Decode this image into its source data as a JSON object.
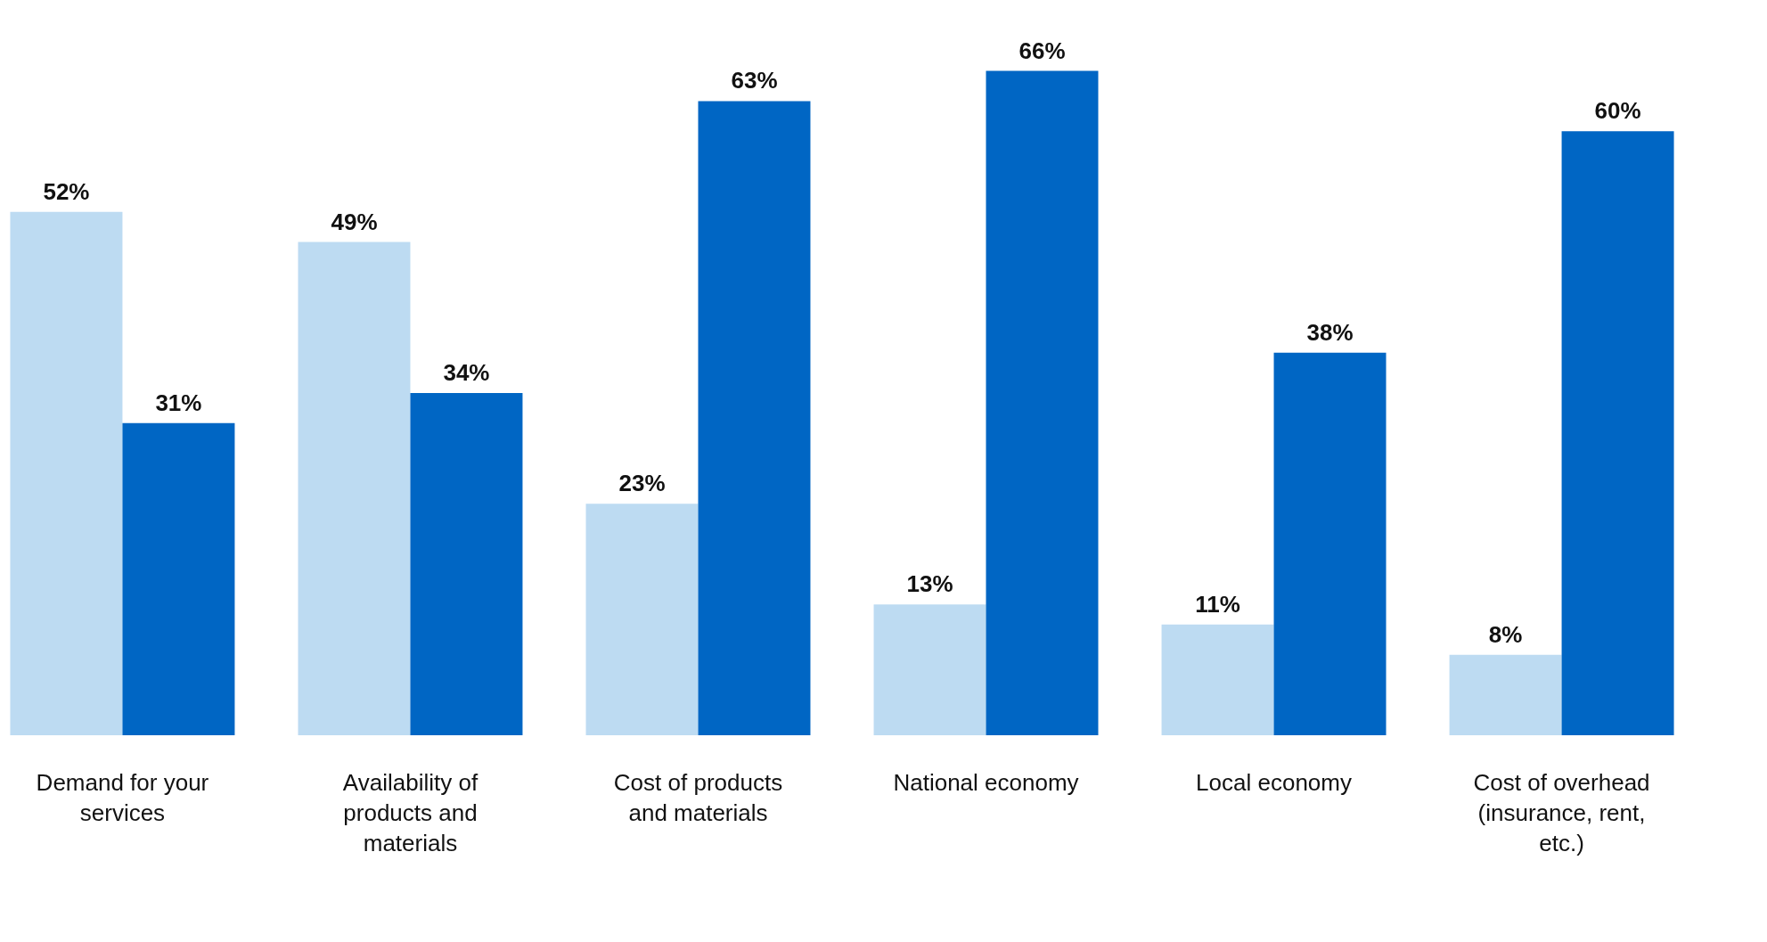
{
  "chart_data": {
    "type": "bar",
    "categories": [
      "Demand for your services",
      "Availability of products and materials",
      "Cost of products and materials",
      "National economy",
      "Local economy",
      "Cost of overhead (insurance, rent, etc.)"
    ],
    "series": [
      {
        "color": "#bddbf2",
        "values": [
          52,
          49,
          23,
          13,
          11,
          8
        ],
        "value_labels": [
          "52%",
          "49%",
          "23%",
          "13%",
          "11%",
          "8%"
        ]
      },
      {
        "color": "#0066c4",
        "values": [
          31,
          34,
          63,
          66,
          38,
          60
        ],
        "value_labels": [
          "31%",
          "34%",
          "63%",
          "66%",
          "38%",
          "60%"
        ]
      }
    ],
    "legend": false,
    "grid": false
  }
}
